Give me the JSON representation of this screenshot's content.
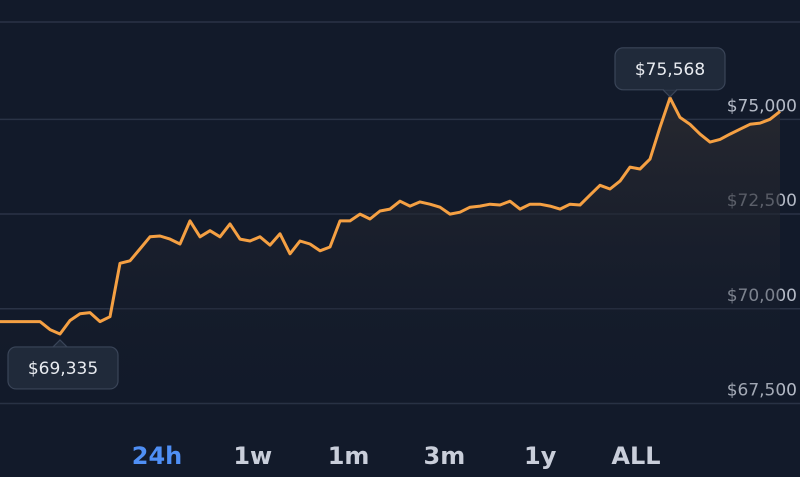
{
  "chart_data": {
    "type": "line",
    "values": [
      69660,
      69660,
      69660,
      69660,
      69660,
      69450,
      69335,
      69690,
      69870,
      69900,
      69660,
      69790,
      71200,
      71265,
      71580,
      71900,
      71920,
      71840,
      71710,
      72320,
      71900,
      72060,
      71900,
      72240,
      71840,
      71790,
      71900,
      71680,
      71980,
      71450,
      71790,
      71710,
      71530,
      71630,
      72320,
      72320,
      72500,
      72370,
      72580,
      72630,
      72840,
      72710,
      72820,
      72760,
      72680,
      72500,
      72550,
      72680,
      72710,
      72760,
      72740,
      72840,
      72630,
      72760,
      72760,
      72710,
      72630,
      72760,
      72740,
      73000,
      73260,
      73160,
      73370,
      73740,
      73690,
      73950,
      74790,
      75568,
      75050,
      74870,
      74610,
      74400,
      74470,
      74610,
      74740,
      74870,
      74900,
      75000,
      75210
    ],
    "color": "#f5a043",
    "ylim": [
      66800,
      78150
    ],
    "yticks": [
      {
        "value": 67500,
        "label": "$67,500"
      },
      {
        "value": 70000,
        "label": "$70,000"
      },
      {
        "value": 72500,
        "label": "$72,500"
      },
      {
        "value": 75000,
        "label": "$75,000"
      }
    ],
    "grid": true,
    "annotations": [
      {
        "label": "$75,568",
        "value": 75568,
        "position": "above"
      },
      {
        "label": "$69,335",
        "value": 69335,
        "position": "below"
      }
    ]
  },
  "range_options": [
    "24h",
    "1w",
    "1m",
    "3m",
    "1y",
    "ALL"
  ],
  "selected_range": "24h"
}
